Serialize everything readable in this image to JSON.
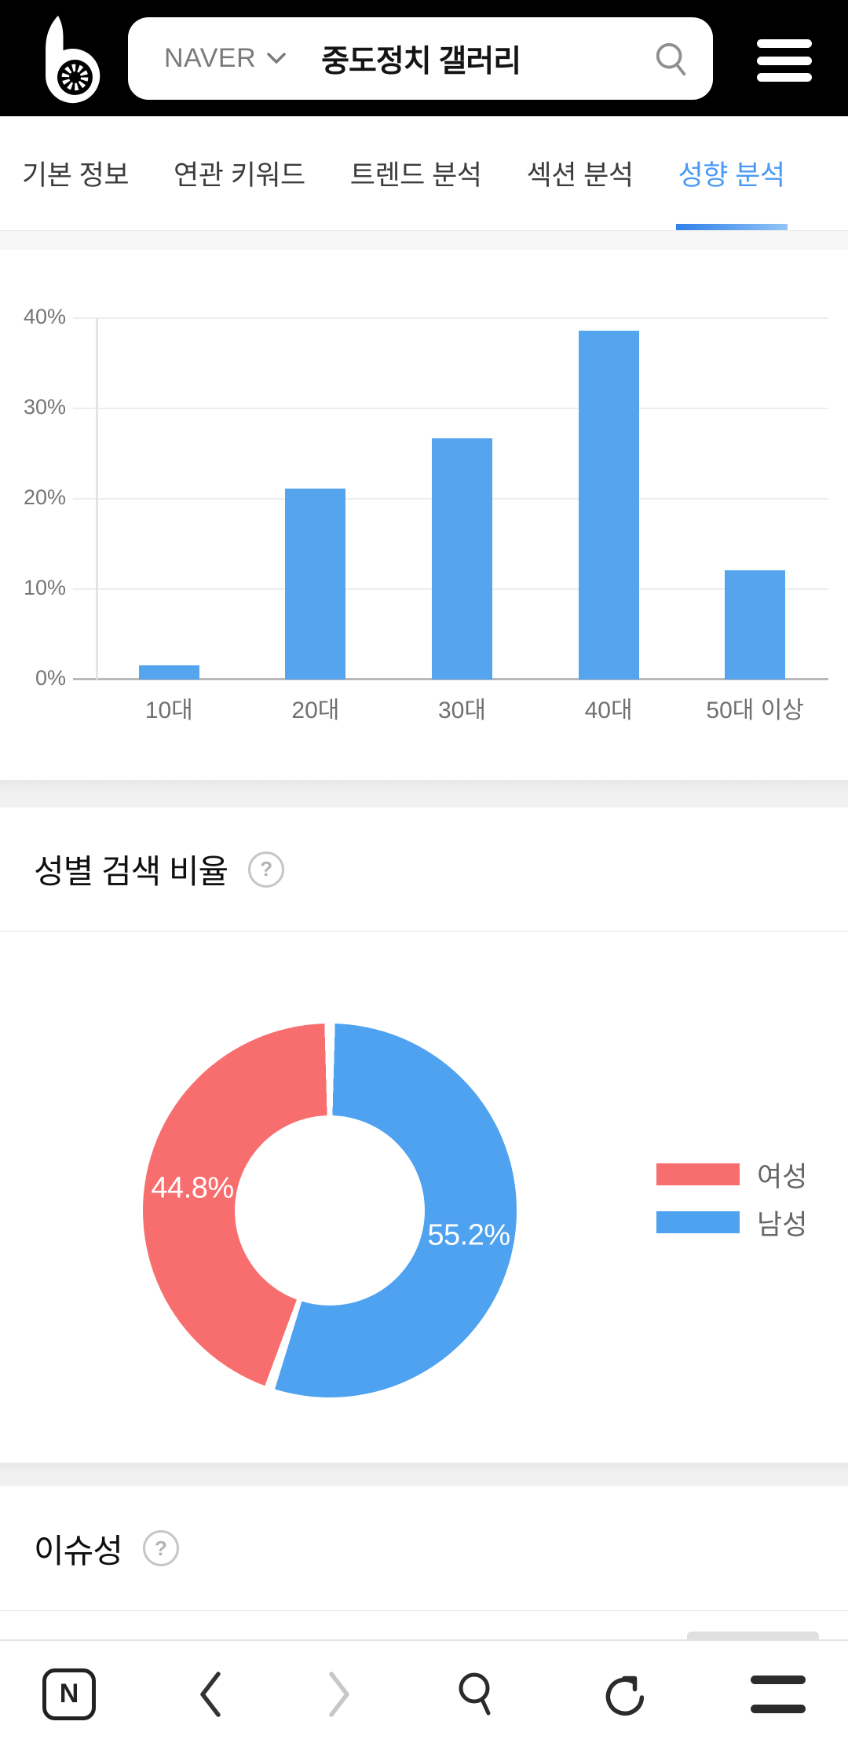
{
  "header": {
    "search_engine": "NAVER",
    "search_query": "중도정치 갤러리"
  },
  "tabs": [
    {
      "label": "기본 정보",
      "active": false
    },
    {
      "label": "연관 키워드",
      "active": false
    },
    {
      "label": "트렌드 분석",
      "active": false
    },
    {
      "label": "섹션 분석",
      "active": false
    },
    {
      "label": "성향 분석",
      "active": true
    }
  ],
  "sections": {
    "gender": {
      "title": "성별 검색 비율",
      "help": "?"
    },
    "issue": {
      "title": "이슈성",
      "help": "?"
    }
  },
  "chart_data": [
    {
      "type": "bar",
      "categories": [
        "10대",
        "20대",
        "30대",
        "40대",
        "50대 이상"
      ],
      "values": [
        1.6,
        21.1,
        26.7,
        38.6,
        12.1
      ],
      "unit": "%",
      "ylim": [
        0,
        40
      ],
      "yticks": [
        0,
        10,
        20,
        30,
        40
      ],
      "ytick_suffix": "%",
      "bar_color": "#54a4ee",
      "grid": true,
      "legend": "none"
    },
    {
      "type": "pie",
      "donut": true,
      "hole_ratio": 0.51,
      "start_angle_deg": 0,
      "clockwise": true,
      "first_drawn_slice": "남성",
      "legend_position": "right",
      "slices": [
        {
          "label": "여성",
          "value": 44.8,
          "display": "44.8%",
          "color": "#f86e6e"
        },
        {
          "label": "남성",
          "value": 55.2,
          "display": "55.2%",
          "color": "#4ea2ef"
        }
      ]
    }
  ],
  "colors": {
    "header_bg": "#000000",
    "accent_tab_blue": "#4a9af5",
    "bar_blue": "#54a4ee",
    "donut_pink": "#f86e6e",
    "donut_blue": "#4ea2ef"
  },
  "bottom_nav": {
    "naver_label": "N",
    "items": [
      "naver-home",
      "back",
      "forward",
      "search",
      "refresh",
      "menu"
    ]
  }
}
